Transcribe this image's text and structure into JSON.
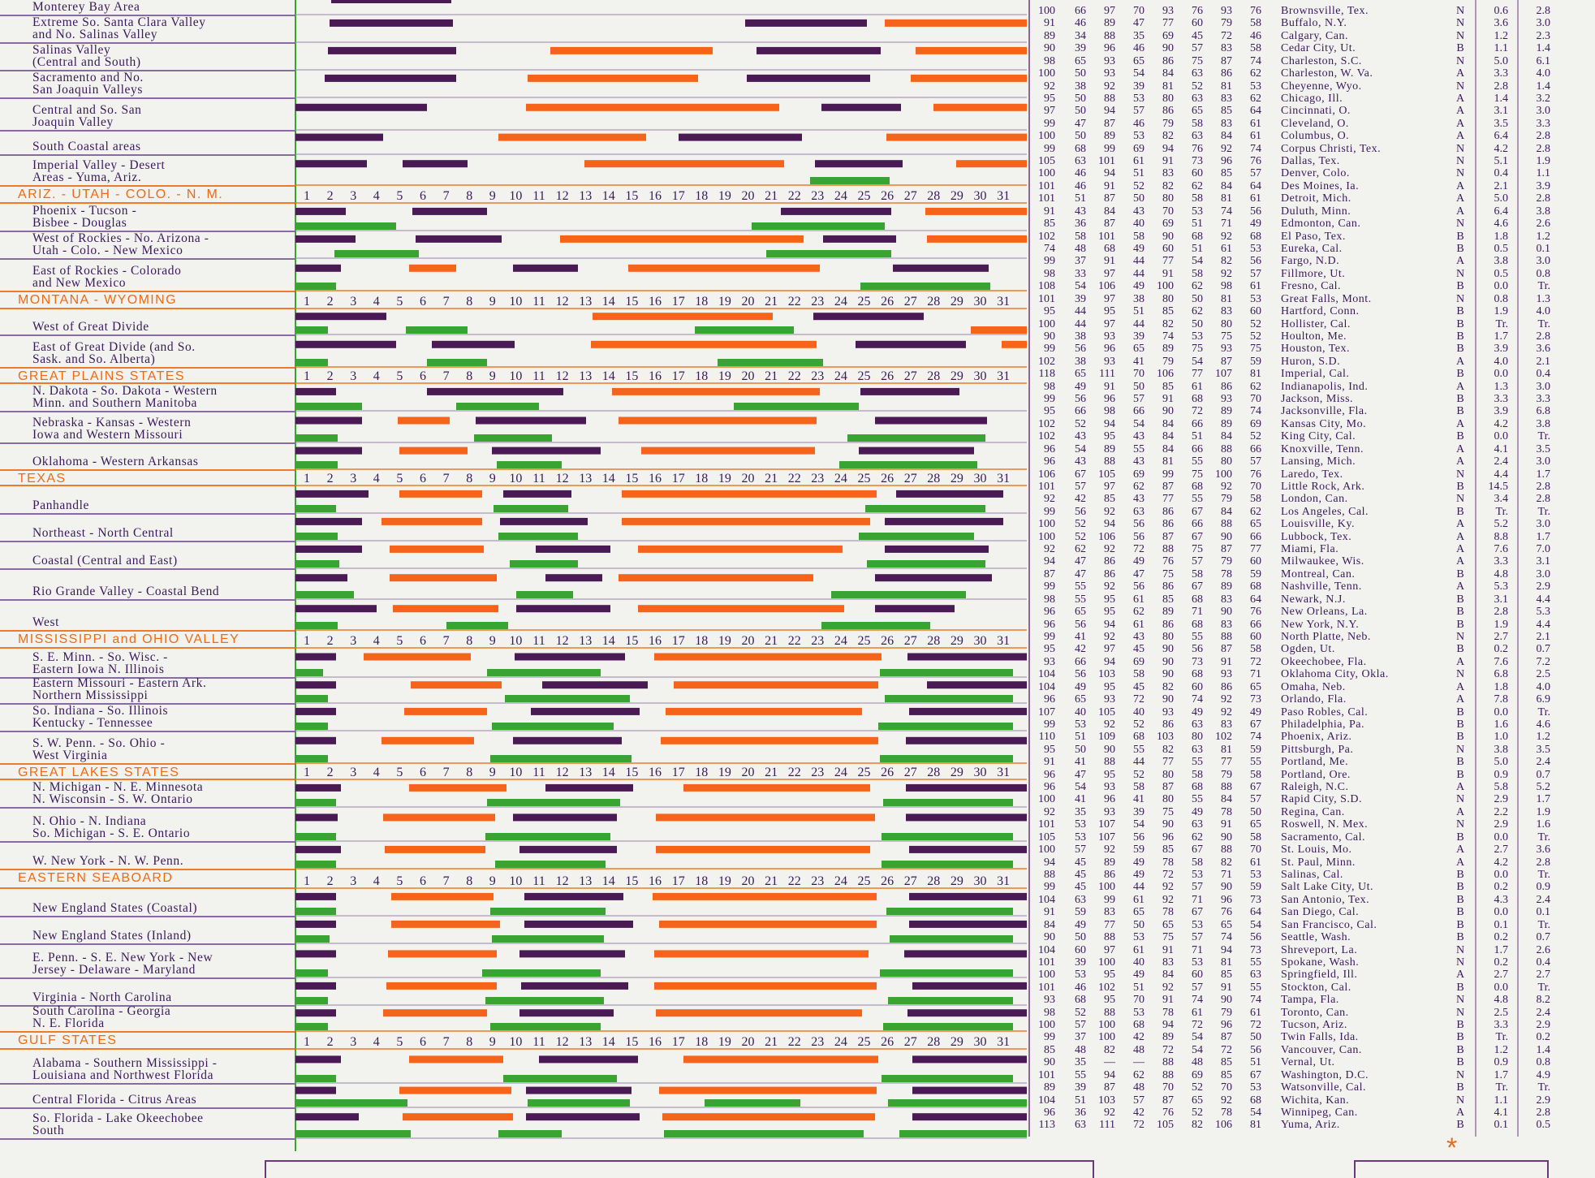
{
  "colors": {
    "purple": "#4a1a55",
    "orange": "#f5641a",
    "green": "#3aa432",
    "ink": "#3a1a5a",
    "section": "#f06a12"
  },
  "day_numbers": [
    "1",
    "2",
    "3",
    "4",
    "5",
    "6",
    "7",
    "8",
    "9",
    "10",
    "11",
    "12",
    "13",
    "14",
    "15",
    "16",
    "17",
    "18",
    "19",
    "20",
    "21",
    "22",
    "23",
    "24",
    "25",
    "26",
    "27",
    "28",
    "29",
    "30",
    "31"
  ],
  "regions": [
    {
      "label": "Monterey Bay Area"
    },
    {
      "label": "Extreme So. Santa Clara Valley\nand No. Salinas Valley"
    },
    {
      "label": "Salinas Valley\n(Central and South)"
    },
    {
      "label": "Sacramento and No.\nSan Joaquin Valleys"
    },
    {
      "label": "Central and So. San\nJoaquin Valley"
    },
    {
      "label": "South Coastal areas"
    },
    {
      "label": "Imperial Valley - Desert\nAreas - Yuma, Ariz."
    },
    {
      "section": "ARIZ. - UTAH - COLO. - N. M."
    },
    {
      "label": "Phoenix - Tucson -\nBisbee - Douglas"
    },
    {
      "label": "West of Rockies - No. Arizona -\nUtah - Colo. - New Mexico"
    },
    {
      "label": "East of Rockies - Colorado\nand New Mexico"
    },
    {
      "section": "MONTANA - WYOMING"
    },
    {
      "label": "West of Great Divide"
    },
    {
      "label": "East of Great Divide (and So.\nSask. and So. Alberta)"
    },
    {
      "section": "GREAT PLAINS STATES"
    },
    {
      "label": "N. Dakota - So. Dakota - Western\nMinn. and Southern Manitoba"
    },
    {
      "label": "Nebraska - Kansas - Western\nIowa and Western Missouri"
    },
    {
      "label": "Oklahoma - Western Arkansas"
    },
    {
      "section": "TEXAS"
    },
    {
      "label": "Panhandle"
    },
    {
      "label": "Northeast - North Central"
    },
    {
      "label": "Coastal (Central and East)"
    },
    {
      "label": "Rio Grande Valley - Coastal Bend"
    },
    {
      "label": "West"
    },
    {
      "section": "MISSISSIPPI and OHIO VALLEY"
    },
    {
      "label": "S. E. Minn. - So. Wisc. -\nEastern Iowa N. Illinois"
    },
    {
      "label": "Eastern Missouri - Eastern Ark.\nNorthern Mississippi"
    },
    {
      "label": "So. Indiana - So. Illinois\nKentucky - Tennessee"
    },
    {
      "label": "S. W. Penn. - So. Ohio -\nWest Virginia"
    },
    {
      "section": "GREAT LAKES STATES"
    },
    {
      "label": "N. Michigan - N. E. Minnesota\nN. Wisconsin - S. W. Ontario"
    },
    {
      "label": "N. Ohio - N. Indiana\nSo. Michigan - S. E. Ontario"
    },
    {
      "label": "W. New York - N. W. Penn."
    },
    {
      "section": "EASTERN SEABOARD"
    },
    {
      "label": "New England States (Coastal)"
    },
    {
      "label": "New England States (Inland)"
    },
    {
      "label": "E. Penn. - S. E. New York - New\nJersey - Delaware - Maryland"
    },
    {
      "label": "Virginia - North Carolina"
    },
    {
      "label": "South Carolina - Georgia\nN. E. Florida"
    },
    {
      "section": "GULF STATES"
    },
    {
      "label": "Alabama - Southern Mississippi -\nLouisiana and Northwest Florida"
    },
    {
      "label": "Central Florida - Citrus Areas"
    },
    {
      "label": "So. Florida - Lake Okeechobee\nSouth"
    }
  ],
  "cities": [
    [
      "100",
      "66",
      "97",
      "70",
      "93",
      "76",
      "93",
      "76",
      "Brownsville, Tex.",
      "N",
      "0.6",
      "2.8"
    ],
    [
      "91",
      "46",
      "89",
      "47",
      "77",
      "60",
      "79",
      "58",
      "Buffalo, N.Y.",
      "N",
      "3.6",
      "3.0"
    ],
    [
      "89",
      "34",
      "88",
      "35",
      "69",
      "45",
      "72",
      "46",
      "Calgary, Can.",
      "N",
      "1.2",
      "2.3"
    ],
    [
      "90",
      "39",
      "96",
      "46",
      "90",
      "57",
      "83",
      "58",
      "Cedar City, Ut.",
      "B",
      "1.1",
      "1.4"
    ],
    [
      "98",
      "65",
      "93",
      "65",
      "86",
      "75",
      "87",
      "74",
      "Charleston, S.C.",
      "N",
      "5.0",
      "6.1"
    ],
    [
      "100",
      "50",
      "93",
      "54",
      "84",
      "63",
      "86",
      "62",
      "Charleston, W. Va.",
      "A",
      "3.3",
      "4.0"
    ],
    [
      "92",
      "38",
      "92",
      "39",
      "81",
      "52",
      "81",
      "53",
      "Cheyenne, Wyo.",
      "N",
      "2.8",
      "1.4"
    ],
    [
      "95",
      "50",
      "88",
      "53",
      "80",
      "63",
      "83",
      "62",
      "Chicago, Ill.",
      "A",
      "1.4",
      "3.2"
    ],
    [
      "97",
      "50",
      "94",
      "57",
      "86",
      "65",
      "85",
      "64",
      "Cincinnati, O.",
      "A",
      "3.1",
      "3.0"
    ],
    [
      "99",
      "47",
      "87",
      "46",
      "79",
      "58",
      "83",
      "61",
      "Cleveland, O.",
      "A",
      "3.5",
      "3.3"
    ],
    [
      "100",
      "50",
      "89",
      "53",
      "82",
      "63",
      "84",
      "61",
      "Columbus, O.",
      "A",
      "6.4",
      "2.8"
    ],
    [
      "99",
      "68",
      "99",
      "69",
      "94",
      "76",
      "92",
      "74",
      "Corpus Christi, Tex.",
      "N",
      "4.2",
      "2.8"
    ],
    [
      "105",
      "63",
      "101",
      "61",
      "91",
      "73",
      "96",
      "76",
      "Dallas, Tex.",
      "N",
      "5.1",
      "1.9"
    ],
    [
      "100",
      "46",
      "94",
      "51",
      "83",
      "60",
      "85",
      "57",
      "Denver, Colo.",
      "N",
      "0.4",
      "1.1"
    ],
    [
      "101",
      "46",
      "91",
      "52",
      "82",
      "62",
      "84",
      "64",
      "Des Moines, Ia.",
      "A",
      "2.1",
      "3.9"
    ],
    [
      "101",
      "51",
      "87",
      "50",
      "80",
      "58",
      "81",
      "61",
      "Detroit, Mich.",
      "A",
      "5.0",
      "2.8"
    ],
    [
      "91",
      "43",
      "84",
      "43",
      "70",
      "53",
      "74",
      "56",
      "Duluth, Minn.",
      "A",
      "6.4",
      "3.8"
    ],
    [
      "85",
      "36",
      "87",
      "40",
      "69",
      "51",
      "71",
      "49",
      "Edmonton, Can.",
      "N",
      "4.6",
      "2.6"
    ],
    [
      "102",
      "58",
      "101",
      "58",
      "90",
      "68",
      "92",
      "68",
      "El Paso, Tex.",
      "B",
      "1.8",
      "1.2"
    ],
    [
      "74",
      "48",
      "68",
      "49",
      "60",
      "51",
      "61",
      "53",
      "Eureka, Cal.",
      "B",
      "0.5",
      "0.1"
    ],
    [
      "99",
      "37",
      "91",
      "44",
      "77",
      "54",
      "82",
      "56",
      "Fargo, N.D.",
      "A",
      "3.8",
      "3.0"
    ],
    [
      "98",
      "33",
      "97",
      "44",
      "91",
      "58",
      "92",
      "57",
      "Fillmore, Ut.",
      "N",
      "0.5",
      "0.8"
    ],
    [
      "108",
      "54",
      "106",
      "49",
      "100",
      "62",
      "98",
      "61",
      "Fresno, Cal.",
      "B",
      "0.0",
      "Tr."
    ],
    [
      "101",
      "39",
      "97",
      "38",
      "80",
      "50",
      "81",
      "53",
      "Great Falls, Mont.",
      "N",
      "0.8",
      "1.3"
    ],
    [
      "95",
      "44",
      "95",
      "51",
      "85",
      "62",
      "83",
      "60",
      "Hartford, Conn.",
      "B",
      "1.9",
      "4.0"
    ],
    [
      "100",
      "44",
      "97",
      "44",
      "82",
      "50",
      "80",
      "52",
      "Hollister, Cal.",
      "B",
      "Tr.",
      "Tr."
    ],
    [
      "90",
      "38",
      "93",
      "39",
      "74",
      "53",
      "75",
      "52",
      "Houlton, Me.",
      "B",
      "1.7",
      "2.8"
    ],
    [
      "99",
      "56",
      "96",
      "65",
      "89",
      "75",
      "93",
      "75",
      "Houston, Tex.",
      "B",
      "3.9",
      "3.6"
    ],
    [
      "102",
      "38",
      "93",
      "41",
      "79",
      "54",
      "87",
      "59",
      "Huron, S.D.",
      "A",
      "4.0",
      "2.1"
    ],
    [
      "118",
      "65",
      "111",
      "70",
      "106",
      "77",
      "107",
      "81",
      "Imperial, Cal.",
      "B",
      "0.0",
      "0.4"
    ],
    [
      "98",
      "49",
      "91",
      "50",
      "85",
      "61",
      "86",
      "62",
      "Indianapolis, Ind.",
      "A",
      "1.3",
      "3.0"
    ],
    [
      "99",
      "56",
      "96",
      "57",
      "91",
      "68",
      "93",
      "70",
      "Jackson, Miss.",
      "B",
      "3.3",
      "3.3"
    ],
    [
      "95",
      "66",
      "98",
      "66",
      "90",
      "72",
      "89",
      "74",
      "Jacksonville, Fla.",
      "B",
      "3.9",
      "6.8"
    ],
    [
      "102",
      "52",
      "94",
      "54",
      "84",
      "66",
      "89",
      "69",
      "Kansas City, Mo.",
      "A",
      "4.2",
      "3.8"
    ],
    [
      "102",
      "43",
      "95",
      "43",
      "84",
      "51",
      "84",
      "52",
      "King City, Cal.",
      "B",
      "0.0",
      "Tr."
    ],
    [
      "96",
      "54",
      "89",
      "55",
      "84",
      "66",
      "88",
      "66",
      "Knoxville, Tenn.",
      "A",
      "4.1",
      "3.5"
    ],
    [
      "96",
      "43",
      "88",
      "43",
      "81",
      "55",
      "80",
      "57",
      "Lansing, Mich.",
      "A",
      "2.4",
      "3.0"
    ],
    [
      "106",
      "67",
      "105",
      "69",
      "99",
      "75",
      "100",
      "76",
      "Laredo, Tex.",
      "N",
      "4.4",
      "1.7"
    ],
    [
      "101",
      "57",
      "97",
      "62",
      "87",
      "68",
      "92",
      "70",
      "Little Rock, Ark.",
      "B",
      "14.5",
      "2.8"
    ],
    [
      "92",
      "42",
      "85",
      "43",
      "77",
      "55",
      "79",
      "58",
      "London, Can.",
      "N",
      "3.4",
      "2.8"
    ],
    [
      "99",
      "56",
      "92",
      "63",
      "86",
      "67",
      "84",
      "62",
      "Los Angeles, Cal.",
      "B",
      "Tr.",
      "Tr."
    ],
    [
      "100",
      "52",
      "94",
      "56",
      "86",
      "66",
      "88",
      "65",
      "Louisville, Ky.",
      "A",
      "5.2",
      "3.0"
    ],
    [
      "100",
      "52",
      "106",
      "56",
      "87",
      "67",
      "90",
      "66",
      "Lubbock, Tex.",
      "A",
      "8.8",
      "1.7"
    ],
    [
      "92",
      "62",
      "92",
      "72",
      "88",
      "75",
      "87",
      "77",
      "Miami, Fla.",
      "A",
      "7.6",
      "7.0"
    ],
    [
      "94",
      "47",
      "86",
      "49",
      "76",
      "57",
      "79",
      "60",
      "Milwaukee, Wis.",
      "A",
      "3.3",
      "3.1"
    ],
    [
      "87",
      "47",
      "86",
      "47",
      "75",
      "58",
      "78",
      "59",
      "Montreal, Can.",
      "B",
      "4.8",
      "3.0"
    ],
    [
      "99",
      "55",
      "92",
      "56",
      "86",
      "67",
      "89",
      "68",
      "Nashville, Tenn.",
      "A",
      "5.3",
      "2.9"
    ],
    [
      "98",
      "55",
      "95",
      "61",
      "85",
      "68",
      "83",
      "64",
      "Newark, N.J.",
      "B",
      "3.1",
      "4.4"
    ],
    [
      "96",
      "65",
      "95",
      "62",
      "89",
      "71",
      "90",
      "76",
      "New Orleans, La.",
      "B",
      "2.8",
      "5.3"
    ],
    [
      "96",
      "56",
      "94",
      "61",
      "86",
      "68",
      "83",
      "66",
      "New York, N.Y.",
      "B",
      "1.9",
      "4.4"
    ],
    [
      "99",
      "41",
      "92",
      "43",
      "80",
      "55",
      "88",
      "60",
      "North Platte, Neb.",
      "N",
      "2.7",
      "2.1"
    ],
    [
      "95",
      "42",
      "97",
      "45",
      "90",
      "56",
      "87",
      "58",
      "Ogden, Ut.",
      "B",
      "0.2",
      "0.7"
    ],
    [
      "93",
      "66",
      "94",
      "69",
      "90",
      "73",
      "91",
      "72",
      "Okeechobee, Fla.",
      "A",
      "7.6",
      "7.2"
    ],
    [
      "104",
      "56",
      "103",
      "58",
      "90",
      "68",
      "93",
      "71",
      "Oklahoma City, Okla.",
      "N",
      "6.8",
      "2.5"
    ],
    [
      "104",
      "49",
      "95",
      "45",
      "82",
      "60",
      "86",
      "65",
      "Omaha, Neb.",
      "A",
      "1.8",
      "4.0"
    ],
    [
      "96",
      "65",
      "93",
      "72",
      "90",
      "74",
      "92",
      "73",
      "Orlando, Fla.",
      "A",
      "7.8",
      "6.9"
    ],
    [
      "107",
      "40",
      "105",
      "40",
      "93",
      "49",
      "92",
      "49",
      "Paso Robles, Cal.",
      "B",
      "0.0",
      "Tr."
    ],
    [
      "99",
      "53",
      "92",
      "52",
      "86",
      "63",
      "83",
      "67",
      "Philadelphia, Pa.",
      "B",
      "1.6",
      "4.6"
    ],
    [
      "110",
      "51",
      "109",
      "68",
      "103",
      "80",
      "102",
      "74",
      "Phoenix, Ariz.",
      "B",
      "1.0",
      "1.2"
    ],
    [
      "95",
      "50",
      "90",
      "55",
      "82",
      "63",
      "81",
      "59",
      "Pittsburgh, Pa.",
      "N",
      "3.8",
      "3.5"
    ],
    [
      "91",
      "41",
      "88",
      "44",
      "77",
      "55",
      "77",
      "55",
      "Portland, Me.",
      "B",
      "5.0",
      "2.4"
    ],
    [
      "96",
      "47",
      "95",
      "52",
      "80",
      "58",
      "79",
      "58",
      "Portland, Ore.",
      "B",
      "0.9",
      "0.7"
    ],
    [
      "96",
      "54",
      "93",
      "58",
      "87",
      "68",
      "88",
      "67",
      "Raleigh, N.C.",
      "A",
      "5.8",
      "5.2"
    ],
    [
      "100",
      "41",
      "96",
      "41",
      "80",
      "55",
      "84",
      "57",
      "Rapid City, S.D.",
      "N",
      "2.9",
      "1.7"
    ],
    [
      "92",
      "35",
      "93",
      "39",
      "75",
      "49",
      "78",
      "50",
      "Regina, Can.",
      "A",
      "2.2",
      "1.9"
    ],
    [
      "101",
      "53",
      "107",
      "54",
      "90",
      "63",
      "91",
      "65",
      "Roswell, N. Mex.",
      "N",
      "2.9",
      "1.6"
    ],
    [
      "105",
      "53",
      "107",
      "56",
      "96",
      "62",
      "90",
      "58",
      "Sacramento, Cal.",
      "B",
      "0.0",
      "Tr."
    ],
    [
      "100",
      "57",
      "92",
      "59",
      "85",
      "67",
      "88",
      "70",
      "St. Louis, Mo.",
      "A",
      "2.7",
      "3.6"
    ],
    [
      "94",
      "45",
      "89",
      "49",
      "78",
      "58",
      "82",
      "61",
      "St. Paul, Minn.",
      "A",
      "4.2",
      "2.8"
    ],
    [
      "88",
      "45",
      "86",
      "49",
      "72",
      "53",
      "71",
      "53",
      "Salinas, Cal.",
      "B",
      "0.0",
      "Tr."
    ],
    [
      "99",
      "45",
      "100",
      "44",
      "92",
      "57",
      "90",
      "59",
      "Salt Lake City, Ut.",
      "B",
      "0.2",
      "0.9"
    ],
    [
      "104",
      "63",
      "99",
      "61",
      "92",
      "71",
      "96",
      "73",
      "San Antonio, Tex.",
      "B",
      "4.3",
      "2.4"
    ],
    [
      "91",
      "59",
      "83",
      "65",
      "78",
      "67",
      "76",
      "64",
      "San Diego, Cal.",
      "B",
      "0.0",
      "0.1"
    ],
    [
      "84",
      "49",
      "77",
      "50",
      "65",
      "53",
      "65",
      "54",
      "San Francisco, Cal.",
      "B",
      "0.1",
      "Tr."
    ],
    [
      "90",
      "50",
      "88",
      "53",
      "75",
      "57",
      "74",
      "56",
      "Seattle, Wash.",
      "B",
      "0.2",
      "0.7"
    ],
    [
      "104",
      "60",
      "97",
      "61",
      "91",
      "71",
      "94",
      "73",
      "Shreveport, La.",
      "N",
      "1.7",
      "2.6"
    ],
    [
      "101",
      "39",
      "100",
      "40",
      "83",
      "53",
      "81",
      "55",
      "Spokane, Wash.",
      "N",
      "0.2",
      "0.4"
    ],
    [
      "100",
      "53",
      "95",
      "49",
      "84",
      "60",
      "85",
      "63",
      "Springfield, Ill.",
      "A",
      "2.7",
      "2.7"
    ],
    [
      "101",
      "46",
      "102",
      "51",
      "92",
      "57",
      "91",
      "55",
      "Stockton, Cal.",
      "B",
      "0.0",
      "Tr."
    ],
    [
      "93",
      "68",
      "95",
      "70",
      "91",
      "74",
      "90",
      "74",
      "Tampa, Fla.",
      "N",
      "4.8",
      "8.2"
    ],
    [
      "98",
      "52",
      "88",
      "53",
      "78",
      "61",
      "79",
      "61",
      "Toronto, Can.",
      "N",
      "2.5",
      "2.4"
    ],
    [
      "100",
      "57",
      "100",
      "68",
      "94",
      "72",
      "96",
      "72",
      "Tucson, Ariz.",
      "B",
      "3.3",
      "2.9"
    ],
    [
      "99",
      "37",
      "100",
      "42",
      "89",
      "54",
      "87",
      "50",
      "Twin Falls, Ida.",
      "B",
      "Tr.",
      "0.2"
    ],
    [
      "85",
      "48",
      "82",
      "48",
      "72",
      "54",
      "72",
      "56",
      "Vancouver, Can.",
      "B",
      "1.2",
      "1.4"
    ],
    [
      "90",
      "35",
      "—",
      "—",
      "88",
      "48",
      "85",
      "51",
      "Vernal, Ut.",
      "B",
      "0.9",
      "0.8"
    ],
    [
      "101",
      "55",
      "94",
      "62",
      "88",
      "69",
      "85",
      "67",
      "Washington, D.C.",
      "N",
      "1.7",
      "4.9"
    ],
    [
      "89",
      "39",
      "87",
      "48",
      "70",
      "52",
      "70",
      "53",
      "Watsonville, Cal.",
      "B",
      "Tr.",
      "Tr."
    ],
    [
      "104",
      "51",
      "103",
      "57",
      "87",
      "65",
      "92",
      "68",
      "Wichita, Kan.",
      "N",
      "1.1",
      "2.9"
    ],
    [
      "96",
      "36",
      "92",
      "42",
      "76",
      "52",
      "78",
      "54",
      "Winnipeg, Can.",
      "A",
      "4.1",
      "2.8"
    ],
    [
      "113",
      "63",
      "111",
      "72",
      "105",
      "82",
      "106",
      "81",
      "Yuma, Ariz.",
      "B",
      "0.1",
      "0.5"
    ]
  ],
  "footnote_mark": "*"
}
